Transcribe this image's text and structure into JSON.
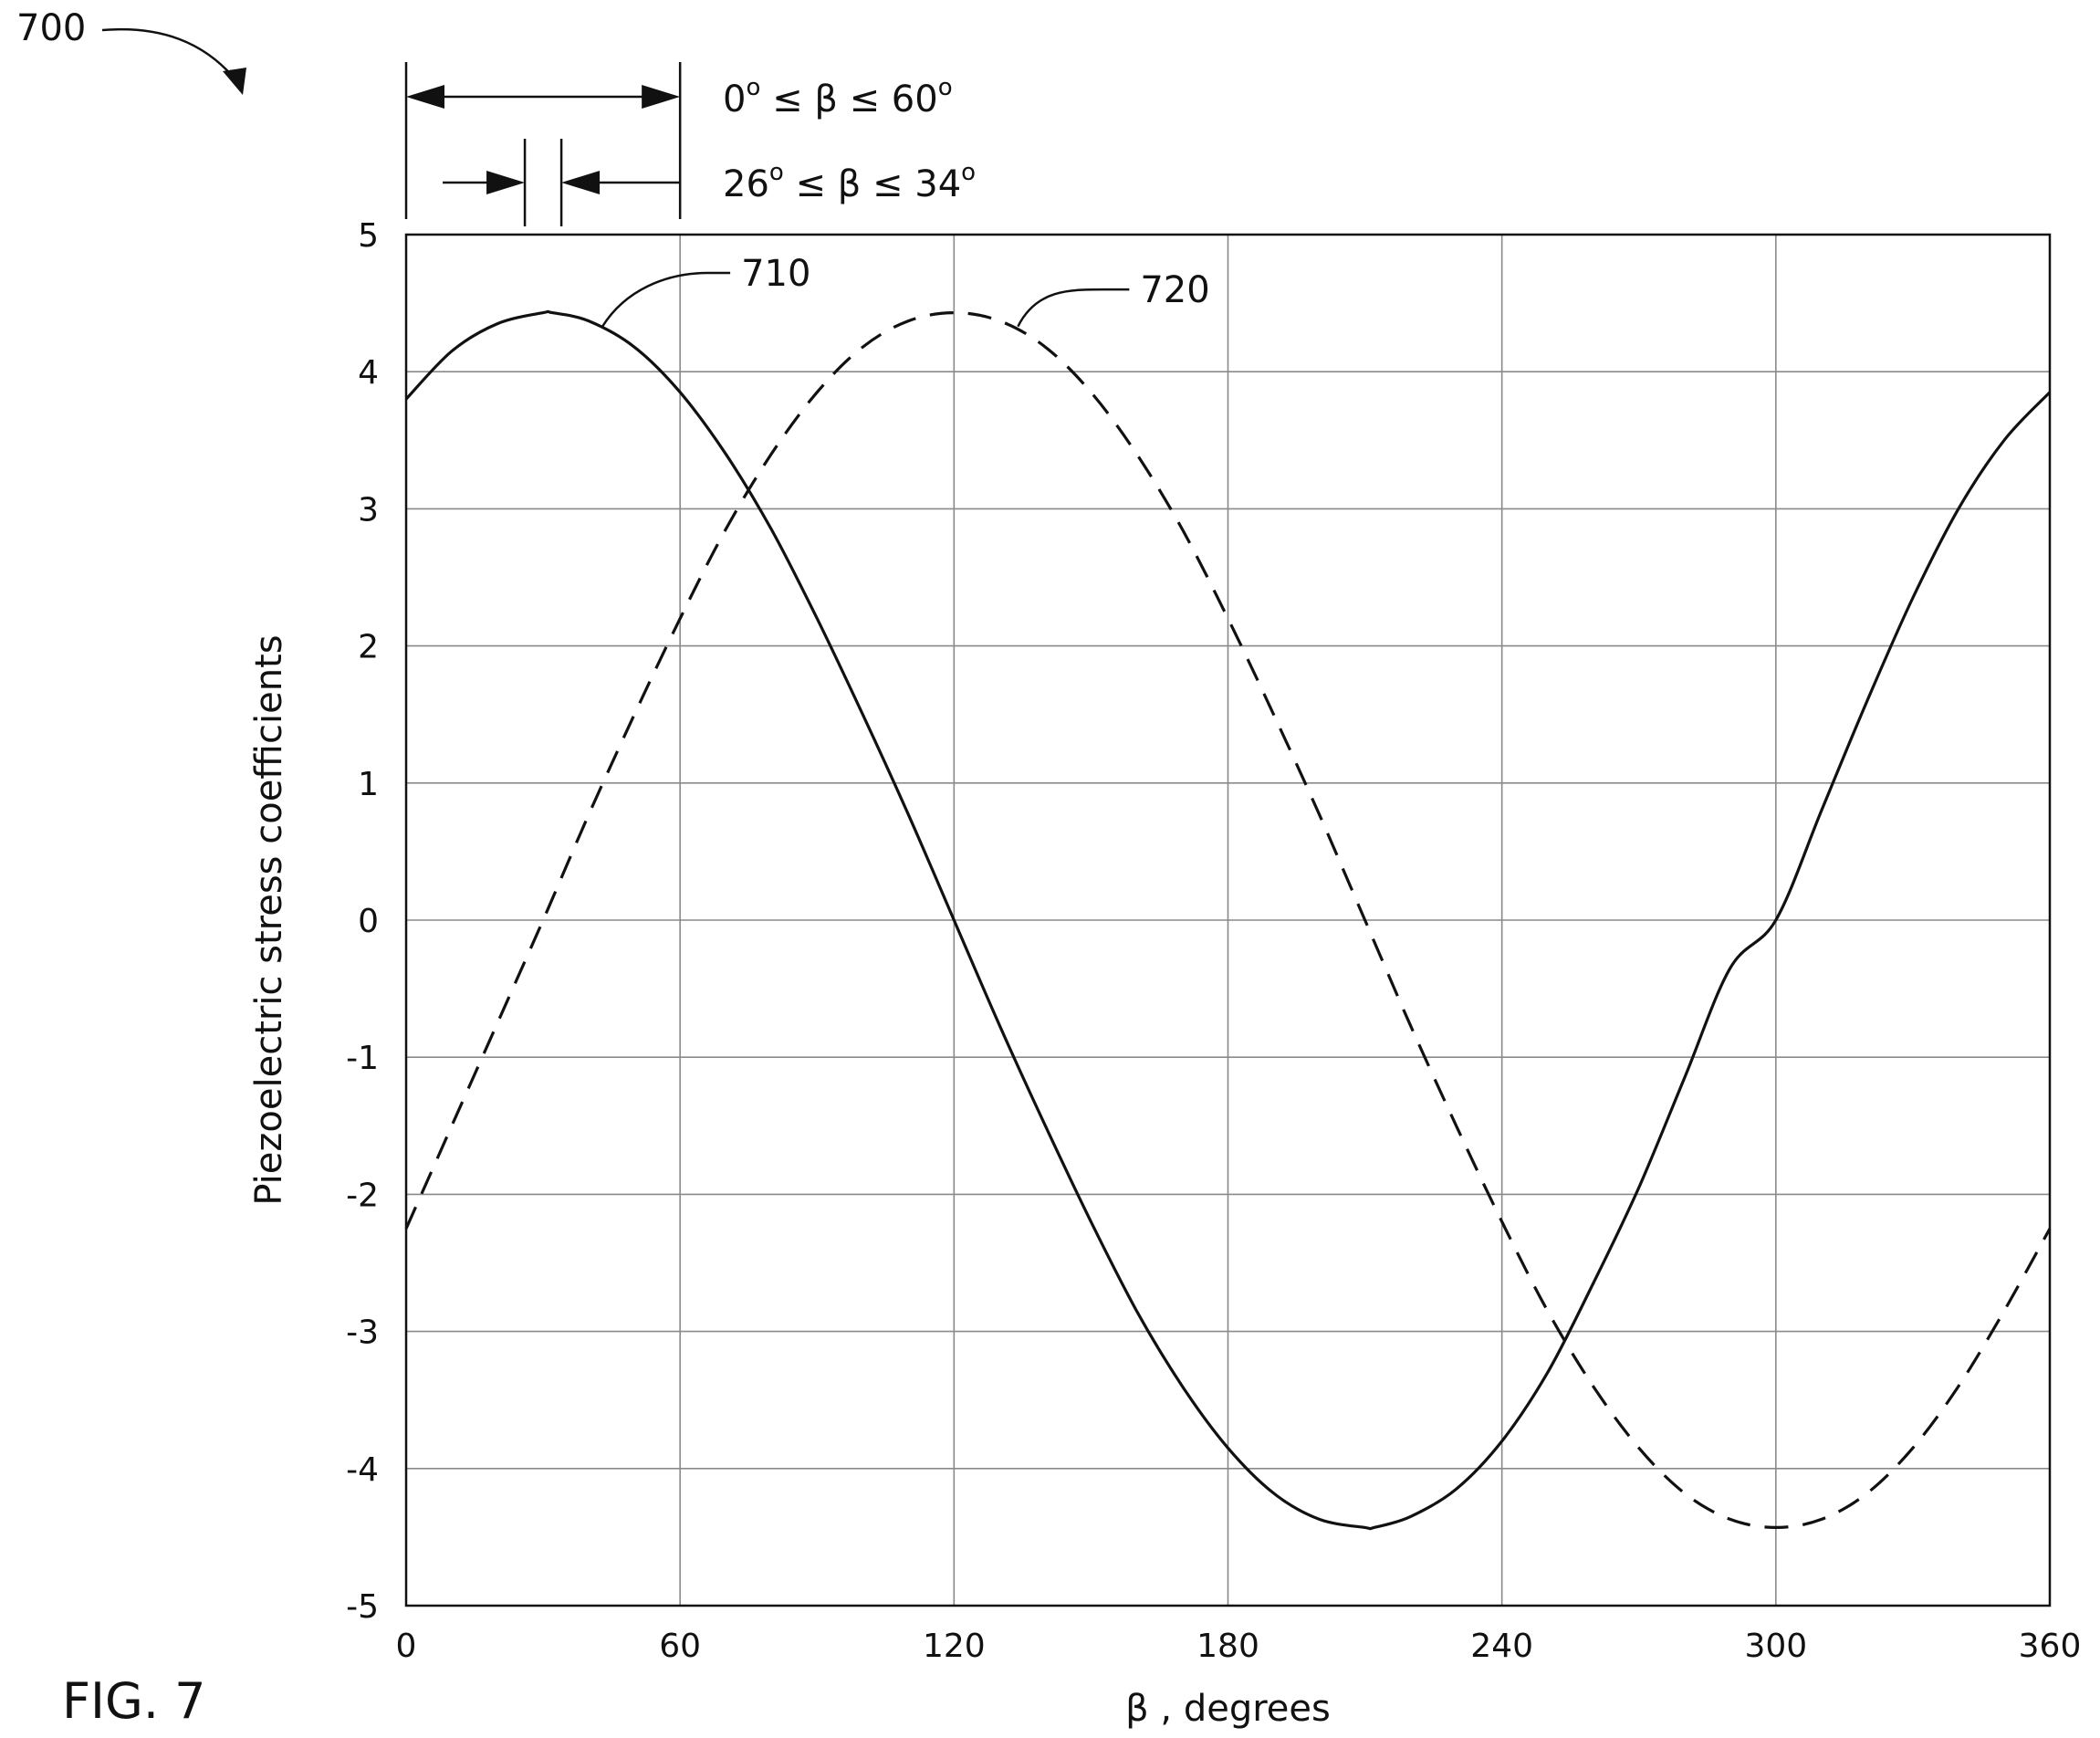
{
  "figure": {
    "label": "FIG. 7",
    "ref_number": "700"
  },
  "chart_data": {
    "type": "line",
    "title": "",
    "xlabel": "β , degrees",
    "ylabel": "Piezoelectric stress coefficients",
    "xlim": [
      0,
      360
    ],
    "ylim": [
      -5,
      5
    ],
    "xticks": [
      0,
      60,
      120,
      180,
      240,
      300,
      360
    ],
    "yticks": [
      5,
      4,
      3,
      2,
      1,
      0,
      -1,
      -2,
      -3,
      -4,
      -5
    ],
    "grid": true,
    "legend": "none",
    "series": [
      {
        "name": "710",
        "style": "solid",
        "x": [
          0,
          10,
          20,
          30,
          32,
          40,
          50,
          60,
          70,
          80,
          90,
          100,
          110,
          120,
          130,
          140,
          150,
          160,
          170,
          180,
          190,
          200,
          210,
          212,
          220,
          230,
          240,
          250,
          260,
          270,
          280,
          290,
          300,
          310,
          320,
          330,
          340,
          350,
          360
        ],
        "y": [
          3.8,
          4.15,
          4.35,
          4.43,
          4.43,
          4.37,
          4.18,
          3.85,
          3.4,
          2.85,
          2.2,
          1.5,
          0.77,
          0.0,
          -0.77,
          -1.5,
          -2.2,
          -2.85,
          -3.4,
          -3.85,
          -4.18,
          -4.37,
          -4.43,
          -4.43,
          -4.35,
          -4.15,
          -3.8,
          -3.3,
          -2.65,
          -1.95,
          -1.15,
          -0.35,
          0.0,
          0.8,
          1.6,
          2.35,
          3.0,
          3.5,
          3.85
        ]
      },
      {
        "name": "720",
        "style": "dashed",
        "x": [
          0,
          10,
          20,
          30,
          40,
          50,
          60,
          70,
          80,
          90,
          100,
          110,
          120,
          130,
          140,
          150,
          160,
          170,
          180,
          190,
          200,
          210,
          220,
          230,
          240,
          250,
          260,
          270,
          280,
          290,
          300,
          310,
          320,
          330,
          340,
          350,
          360
        ],
        "y": [
          -2.25,
          -1.5,
          -0.75,
          0.0,
          0.77,
          1.5,
          2.2,
          2.85,
          3.4,
          3.85,
          4.18,
          4.37,
          4.43,
          4.37,
          4.18,
          3.85,
          3.4,
          2.85,
          2.2,
          1.5,
          0.77,
          0.0,
          -0.77,
          -1.5,
          -2.2,
          -2.85,
          -3.4,
          -3.85,
          -4.18,
          -4.37,
          -4.43,
          -4.37,
          -4.18,
          -3.85,
          -3.4,
          -2.85,
          -2.25
        ]
      }
    ],
    "annotations": [
      {
        "id": "range_wide",
        "text_pre": "0",
        "text_mid": " ≤ β  ≤ 60",
        "sup": "o",
        "from": 0,
        "to": 60
      },
      {
        "id": "range_narrow",
        "text_pre": "26",
        "text_mid": " ≤ β  ≤ 34",
        "sup": "o",
        "from": 26,
        "to": 34
      }
    ]
  }
}
